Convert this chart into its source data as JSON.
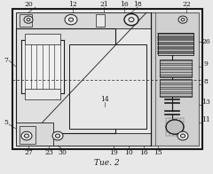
{
  "bg_color": "#e8e8e8",
  "line_color": "#1a1a1a",
  "caption": "Τие. 2",
  "label_fontsize": 5.5,
  "caption_fontsize": 6.5
}
